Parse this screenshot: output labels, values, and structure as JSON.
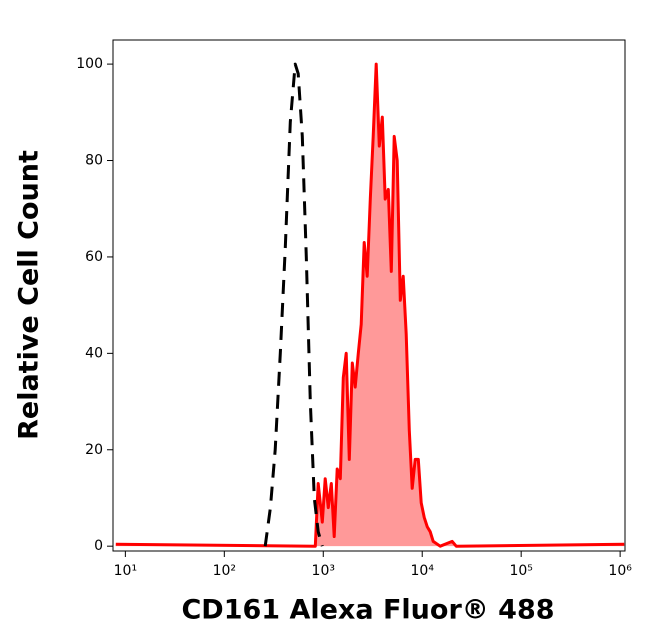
{
  "chart_data": {
    "type": "histogram-overlay",
    "xlabel": "CD161 Alexa Fluor® 488",
    "ylabel": "Relative Cell Count",
    "xscale": "log",
    "xlim": [
      7.5,
      1120000
    ],
    "ylim": [
      -1,
      105
    ],
    "xticks": [
      {
        "value": 10,
        "label": "10¹"
      },
      {
        "value": 100,
        "label": "10²"
      },
      {
        "value": 1000,
        "label": "10³"
      },
      {
        "value": 10000,
        "label": "10⁴"
      },
      {
        "value": 100000,
        "label": "10⁵"
      },
      {
        "value": 1000000,
        "label": "10⁶"
      }
    ],
    "yticks": [
      0,
      20,
      40,
      60,
      80,
      100
    ],
    "series": [
      {
        "color": "#000000",
        "dash": true,
        "x": [
          259,
          292,
          327,
          368,
          413,
          464,
          521,
          558,
          614,
          673,
          739,
          811,
          889,
          977
        ],
        "values": [
          0,
          8,
          20,
          40,
          62,
          88,
          100,
          98,
          85,
          60,
          30,
          10,
          3,
          0
        ]
      },
      {
        "color": "#ff0000",
        "fill": "#ff9999",
        "x": [
          8,
          830,
          889,
          977,
          1047,
          1124,
          1205,
          1291,
          1384,
          1485,
          1592,
          1706,
          1831,
          1963,
          2104,
          2257,
          2420,
          2594,
          2780,
          2985,
          3199,
          3428,
          3681,
          3945,
          4228,
          4539,
          4864,
          5212,
          5585,
          5998,
          6427,
          6887,
          7396,
          7925,
          8492,
          9120,
          9772,
          10470,
          11246,
          12050,
          12912,
          15205,
          20090,
          22030,
          1100000
        ],
        "values": [
          0.4,
          0,
          13,
          5,
          14,
          8,
          13,
          2,
          16,
          14,
          35,
          40,
          18,
          38,
          33,
          40,
          46,
          63,
          56,
          72,
          85,
          100,
          83,
          89,
          72,
          74,
          57,
          85,
          80,
          51,
          56,
          44,
          24,
          12,
          18,
          18,
          9,
          6,
          4,
          3,
          1,
          0,
          1,
          0,
          0.4
        ]
      }
    ]
  }
}
